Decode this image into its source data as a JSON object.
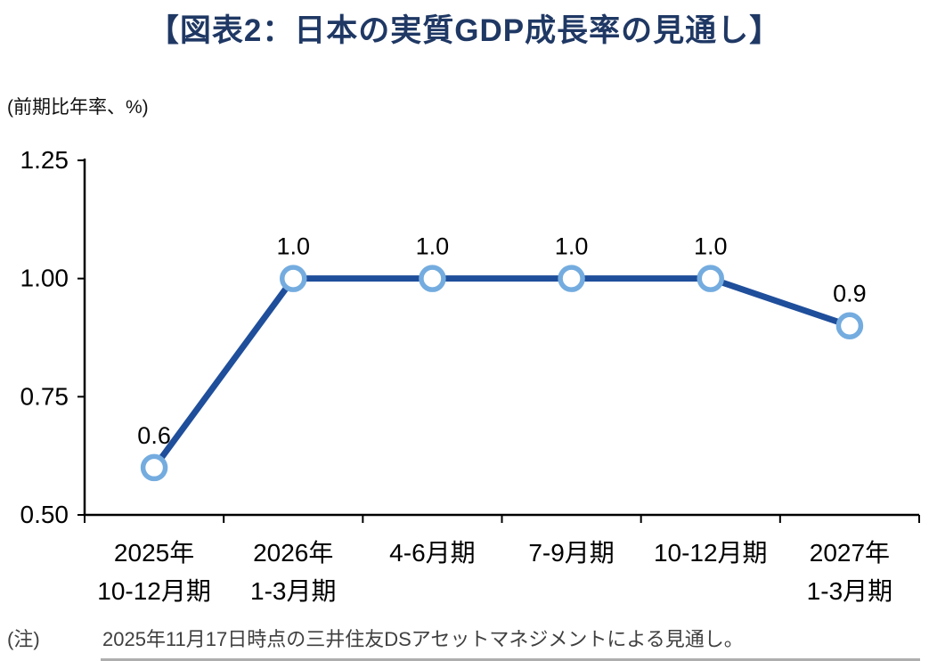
{
  "title": "【図表2：日本の実質GDP成長率の見通し】",
  "axis_unit_label": "(前期比年率、%)",
  "note_label": "(注)",
  "note_text": "2025年11月17日時点の三井住友DSアセットマネジメントによる見通し。",
  "chart_data": {
    "type": "line",
    "title": "図表2：日本の実質GDP成長率の見通し",
    "ylabel": "前期比年率、%",
    "categories": [
      [
        "2025年",
        "10-12月期"
      ],
      [
        "2026年",
        "1-3月期"
      ],
      [
        "4-6月期"
      ],
      [
        "7-9月期"
      ],
      [
        "10-12月期"
      ],
      [
        "2027年",
        "1-3月期"
      ]
    ],
    "values": [
      0.6,
      1.0,
      1.0,
      1.0,
      1.0,
      0.9
    ],
    "data_labels": [
      "0.6",
      "1.0",
      "1.0",
      "1.0",
      "1.0",
      "0.9"
    ],
    "ylim": [
      0.5,
      1.25
    ],
    "yticks": [
      1.25,
      1.0,
      0.75,
      0.5
    ],
    "ytick_labels": [
      "1.25",
      "1.00",
      "0.75",
      "0.50"
    ],
    "grid": "off",
    "legend": "none",
    "colors": {
      "line": "#1F4E9B",
      "marker_stroke": "#74ACDF",
      "marker_fill": "#FFFFFF",
      "axis": "#000000",
      "title": "#1F3864",
      "label_text": "#000000",
      "note_text": "#3f3f3f"
    }
  }
}
